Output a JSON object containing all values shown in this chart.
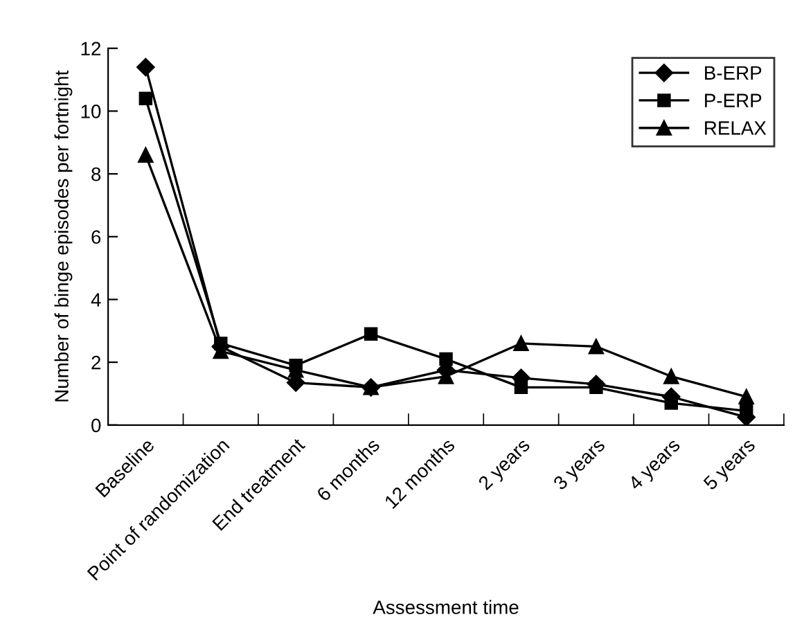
{
  "chart_data": {
    "type": "line",
    "xlabel": "Assessment time",
    "ylabel": "Number of binge episodes per fortnight",
    "categories": [
      "Baseline",
      "Point of randomization",
      "End treatment",
      "6 months",
      "12 months",
      "2 years",
      "3 years",
      "4 years",
      "5 years"
    ],
    "series": [
      {
        "name": "B-ERP",
        "color": "#000000",
        "marker": "diamond",
        "values": [
          11.4,
          2.5,
          1.35,
          1.2,
          1.75,
          1.5,
          1.3,
          0.9,
          0.25
        ]
      },
      {
        "name": "P-ERP",
        "color": "#000000",
        "marker": "square",
        "values": [
          10.4,
          2.6,
          1.9,
          2.9,
          2.1,
          1.2,
          1.2,
          0.7,
          0.45
        ]
      },
      {
        "name": "RELAX",
        "color": "#000000",
        "marker": "triangle",
        "values": [
          8.6,
          2.35,
          1.75,
          1.2,
          1.55,
          2.6,
          2.5,
          1.55,
          0.9
        ]
      }
    ],
    "ylim": [
      0,
      12
    ],
    "yticks": [
      0,
      2,
      4,
      6,
      8,
      10,
      12
    ],
    "grid": false,
    "legend": "top right",
    "line_style": "solid"
  }
}
